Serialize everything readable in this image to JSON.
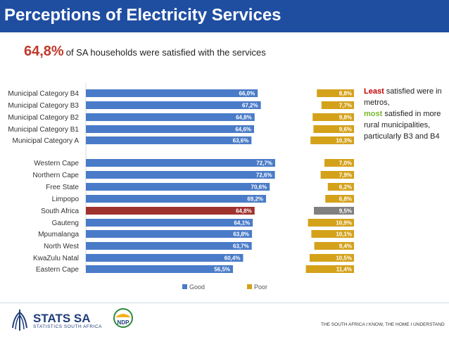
{
  "header": {
    "title": "Perceptions of Electricity Services"
  },
  "headline": {
    "value": "64,8%",
    "text": "of SA households were satisfied with the services"
  },
  "note": {
    "least": "Least",
    "line1": " satisfied were in metros,",
    "most": "most",
    "line2": " satisfied in more rural municipalities, particularly B3 and B4"
  },
  "colors": {
    "good": "#4a7bc8",
    "poor": "#d4a11a",
    "highlight_good": "#a0322e",
    "highlight_poor": "#808080",
    "title_bar": "#1f4ea1"
  },
  "chart_data": {
    "type": "bar",
    "orientation": "horizontal",
    "categories": [
      "Municipal Category B4",
      "Municipal Category B3",
      "Municipal Category B2",
      "Municipal Category B1",
      "Municipal Category A",
      "Western Cape",
      "Northern Cape",
      "Free State",
      "Limpopo",
      "South Africa",
      "Gauteng",
      "Mpumalanga",
      "North West",
      "KwaZulu Natal",
      "Eastern Cape"
    ],
    "highlight": "South Africa",
    "series": [
      {
        "name": "Good",
        "values": [
          66.0,
          67.2,
          64.8,
          64.6,
          63.6,
          72.7,
          72.6,
          70.6,
          69.2,
          64.8,
          64.1,
          63.8,
          63.7,
          60.4,
          56.5
        ],
        "labels": [
          "66,0%",
          "67,2%",
          "64,8%",
          "64,6%",
          "63,6%",
          "72,7%",
          "72,6%",
          "70,6%",
          "69,2%",
          "64,8%",
          "64,1%",
          "63,8%",
          "63,7%",
          "60,4%",
          "56,5%"
        ]
      },
      {
        "name": "Poor",
        "values": [
          8.8,
          7.7,
          9.8,
          9.6,
          10.3,
          7.0,
          7.9,
          6.2,
          6.8,
          9.5,
          10.9,
          10.1,
          9.4,
          10.5,
          11.4
        ],
        "labels": [
          "8,8%",
          "7,7%",
          "9,8%",
          "9,6%",
          "10,3%",
          "7,0%",
          "7,9%",
          "6,2%",
          "6,8%",
          "9,5%",
          "10,9%",
          "10,1%",
          "9,4%",
          "10,5%",
          "11,4%"
        ]
      }
    ],
    "legend": [
      "Good",
      "Poor"
    ]
  },
  "footer": {
    "logo": "STATS SA",
    "logo_sub": "STATISTICS SOUTH AFRICA",
    "ndp": "NDP",
    "tagline": "THE SOUTH AFRICA I KNOW, THE HOME I UNDERSTAND"
  }
}
